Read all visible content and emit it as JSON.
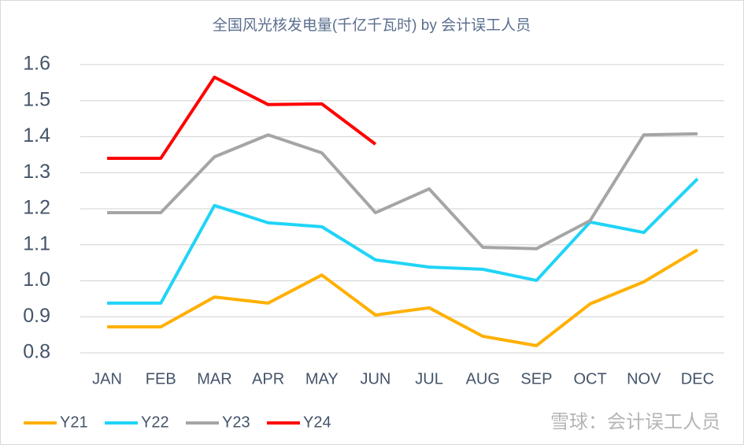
{
  "chart_data": {
    "type": "line",
    "title": "全国风光核发电量(千亿千瓦时) by 会计误工人员",
    "watermark": "雪球：会计误工人员",
    "categories": [
      "JAN",
      "FEB",
      "MAR",
      "APR",
      "MAY",
      "JUN",
      "JUL",
      "AUG",
      "SEP",
      "OCT",
      "NOV",
      "DEC"
    ],
    "series": [
      {
        "name": "Y21",
        "color": "#ffb000",
        "values": [
          0.872,
          0.872,
          0.955,
          0.938,
          1.016,
          0.905,
          0.925,
          0.846,
          0.82,
          0.936,
          0.997,
          1.086
        ]
      },
      {
        "name": "Y22",
        "color": "#1fd4f7",
        "values": [
          0.938,
          0.938,
          1.209,
          1.161,
          1.15,
          1.058,
          1.038,
          1.032,
          1.001,
          1.163,
          1.134,
          1.283
        ]
      },
      {
        "name": "Y23",
        "color": "#a5a5a5",
        "values": [
          1.189,
          1.189,
          1.344,
          1.405,
          1.355,
          1.189,
          1.255,
          1.093,
          1.089,
          1.167,
          1.405,
          1.408
        ]
      },
      {
        "name": "Y24",
        "color": "#ff0000",
        "values": [
          1.34,
          1.34,
          1.565,
          1.489,
          1.491,
          1.379,
          null,
          null,
          null,
          null,
          null,
          null
        ]
      }
    ],
    "ylim": [
      0.8,
      1.6
    ],
    "yticks": [
      0.8,
      0.9,
      {
        "value": 1,
        "label": "1.0"
      },
      1.1,
      1.2,
      1.3,
      1.4,
      1.5,
      1.6
    ],
    "grid": true,
    "legend": "bottom-left"
  }
}
